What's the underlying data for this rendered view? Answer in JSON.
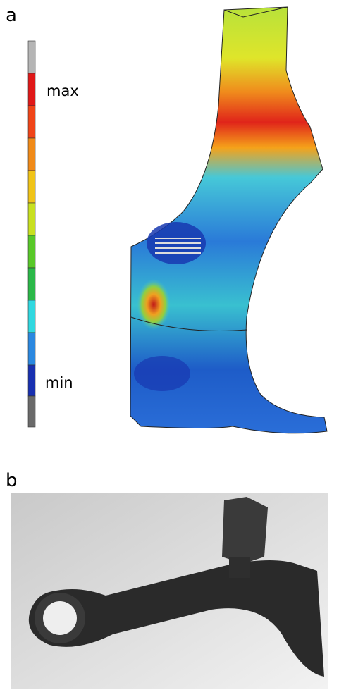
{
  "panels": [
    {
      "label": "a",
      "legend": {
        "max": "max",
        "min": "min"
      }
    },
    {
      "label": "b"
    }
  ]
}
